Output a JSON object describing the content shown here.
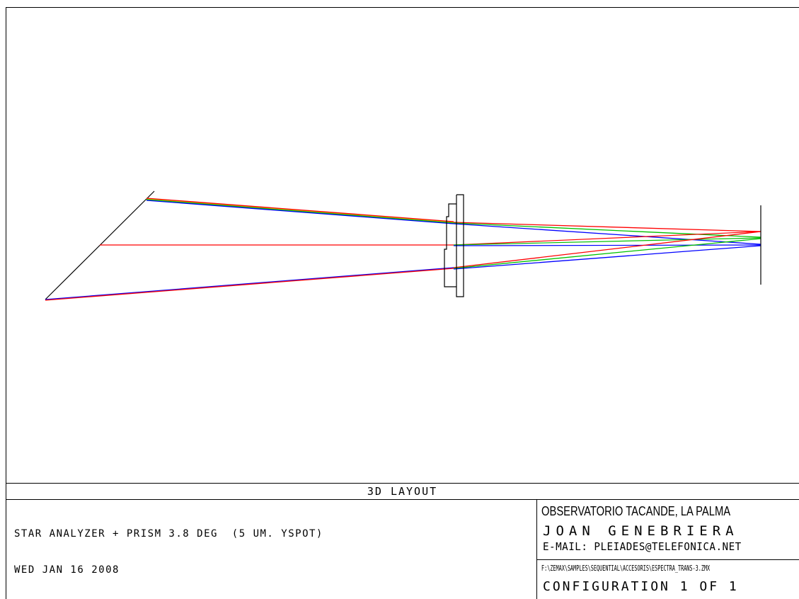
{
  "title": "3D LAYOUT",
  "left_info": {
    "line1": "STAR ANALYZER + PRISM 3.8 DEG  (5 UM. YSPOT)",
    "line2": "WED JAN 16 2008"
  },
  "right_info": {
    "observatory": "OBSERVATORIO TACANDE, LA PALMA",
    "author": "JOAN GENEBRIERA",
    "email": "E-MAIL: PLEIADES@TELEFONICA.NET",
    "file_path": "F:\\ZEMAX\\SAMPLES\\SEQUENTIAL\\ACCESORIS\\ESPECTRA_TRANS-3.ZMX",
    "configuration": "CONFIGURATION 1 OF 1"
  },
  "colors": {
    "red": "#ff0000",
    "green": "#00c000",
    "blue": "#0000ff",
    "yellow": "#c8c800",
    "black": "#000000"
  }
}
